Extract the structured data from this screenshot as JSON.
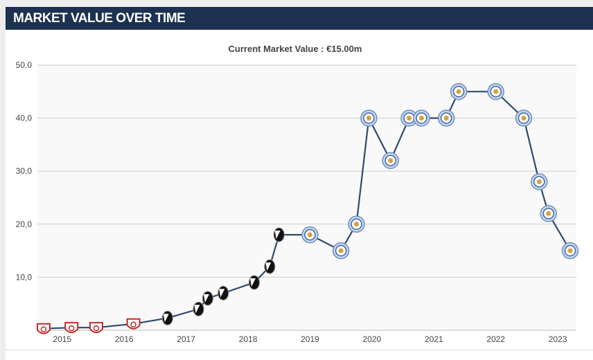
{
  "header": {
    "title": "MARKET VALUE OVER TIME"
  },
  "colors": {
    "header_bg": "#1d3150",
    "line": "#2e4a6b",
    "grid": "#cccccc",
    "plot_bg": "#f9f9f9"
  },
  "chart_data": {
    "type": "line",
    "title": "Current Market Value : €15.00m",
    "xlabel": "",
    "ylabel": "",
    "ylim": [
      0,
      50
    ],
    "xlim": [
      2014.6,
      2023.3
    ],
    "x_ticks": [
      "2015",
      "2016",
      "2017",
      "2018",
      "2019",
      "2020",
      "2021",
      "2022",
      "2023"
    ],
    "y_ticks": [
      "10,0",
      "20,0",
      "30,0",
      "40,0",
      "50,0"
    ],
    "grid": true,
    "legend": "none",
    "series": [
      {
        "values": [
          {
            "x": 2014.7,
            "y": 0.3,
            "club": "club-a"
          },
          {
            "x": 2015.15,
            "y": 0.5,
            "club": "club-a"
          },
          {
            "x": 2015.55,
            "y": 0.5,
            "club": "club-a"
          },
          {
            "x": 2016.15,
            "y": 1.2,
            "club": "club-a"
          },
          {
            "x": 2016.7,
            "y": 2.3,
            "club": "club-b"
          },
          {
            "x": 2017.2,
            "y": 4.0,
            "club": "club-b"
          },
          {
            "x": 2017.35,
            "y": 6.0,
            "club": "club-b"
          },
          {
            "x": 2017.6,
            "y": 7.0,
            "club": "club-b"
          },
          {
            "x": 2018.1,
            "y": 9.0,
            "club": "club-b"
          },
          {
            "x": 2018.35,
            "y": 12.0,
            "club": "club-b"
          },
          {
            "x": 2018.5,
            "y": 18.0,
            "club": "club-b"
          },
          {
            "x": 2019.0,
            "y": 18.0,
            "club": "club-c"
          },
          {
            "x": 2019.5,
            "y": 15.0,
            "club": "club-c"
          },
          {
            "x": 2019.75,
            "y": 20.0,
            "club": "club-c"
          },
          {
            "x": 2019.95,
            "y": 40.0,
            "club": "club-c"
          },
          {
            "x": 2020.3,
            "y": 32.0,
            "club": "club-c"
          },
          {
            "x": 2020.6,
            "y": 40.0,
            "club": "club-c"
          },
          {
            "x": 2020.8,
            "y": 40.0,
            "club": "club-c"
          },
          {
            "x": 2021.2,
            "y": 40.0,
            "club": "club-c"
          },
          {
            "x": 2021.4,
            "y": 45.0,
            "club": "club-c"
          },
          {
            "x": 2022.0,
            "y": 45.0,
            "club": "club-c"
          },
          {
            "x": 2022.45,
            "y": 40.0,
            "club": "club-c"
          },
          {
            "x": 2022.7,
            "y": 28.0,
            "club": "club-c"
          },
          {
            "x": 2022.85,
            "y": 22.0,
            "club": "club-c"
          },
          {
            "x": 2023.2,
            "y": 15.0,
            "club": "club-c"
          }
        ]
      }
    ]
  }
}
